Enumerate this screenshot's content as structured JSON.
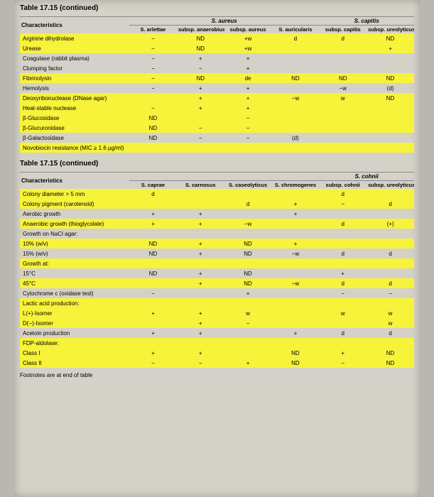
{
  "table_title_1": "Table 17.15   (continued)",
  "table_title_2": "Table 17.15   (continued)",
  "footer": "Footnotes are at end of table",
  "section1": {
    "char_header": "Characteristics",
    "group_headers": [
      "",
      "S. aureus",
      "",
      "S. capitis"
    ],
    "sub_headers": [
      "S. arlettae",
      "subsp. anaerobius",
      "subsp. aureus",
      "S. auricularis",
      "subsp. capitis",
      "subsp. ureolyticus"
    ],
    "rows": [
      {
        "c": "Arginine dihydrolase",
        "v": [
          "−",
          "ND",
          "+w",
          "d",
          "d",
          "ND"
        ],
        "hl": true
      },
      {
        "c": "Urease",
        "v": [
          "−",
          "ND",
          "+w",
          "",
          "",
          "+"
        ],
        "hl": true
      },
      {
        "c": "Coagulase (rabbit plasma)",
        "v": [
          "−",
          "+",
          "+",
          "",
          "",
          ""
        ],
        "hl": false
      },
      {
        "c": "Clumping factor",
        "v": [
          "−",
          "−",
          "+",
          "",
          "",
          ""
        ],
        "hl": false
      },
      {
        "c": "Fibrinolysin",
        "v": [
          "−",
          "ND",
          "de",
          "ND",
          "ND",
          "ND"
        ],
        "hl": true
      },
      {
        "c": "Hemolysis",
        "v": [
          "−",
          "+",
          "+",
          "",
          "−w",
          "(d)"
        ],
        "hl": false
      },
      {
        "c": "Deoxyribonuclease (DNase agar)",
        "v": [
          "",
          "+",
          "+",
          "−w",
          "w",
          "ND"
        ],
        "hl": true
      },
      {
        "c": "Heat-stable nuclease",
        "v": [
          "−",
          "+",
          "+",
          "",
          "",
          ""
        ],
        "hl": true
      },
      {
        "c": "β-Glucosidase",
        "v": [
          "ND",
          "",
          "−",
          "",
          "",
          ""
        ],
        "hl": true
      },
      {
        "c": "β-Glucuronidase",
        "v": [
          "ND",
          "−",
          "−",
          "",
          "",
          ""
        ],
        "hl": true
      },
      {
        "c": "β-Galactosidase",
        "v": [
          "ND",
          "−",
          "−",
          "(d)",
          "",
          ""
        ],
        "hl": false
      },
      {
        "c": "Novobiocin resistance (MIC ≥ 1.6 µg/ml)",
        "v": [
          "",
          "",
          "",
          "",
          "",
          ""
        ],
        "hl": true
      }
    ]
  },
  "section2": {
    "char_header": "Characteristics",
    "group_trailing": "S. cohnii",
    "sub_headers": [
      "S. caprae",
      "S. carnosus",
      "S. caseolyticus",
      "S. chromogenes",
      "subsp. cohnii",
      "subsp. ureolyticus"
    ],
    "rows": [
      {
        "c": "Colony diameter > 5 mm",
        "v": [
          "d",
          "",
          "",
          "",
          "d",
          ""
        ],
        "hl": true
      },
      {
        "c": "Colony pigment (carotenoid)",
        "v": [
          "",
          "",
          "d",
          "+",
          "−",
          "d"
        ],
        "hl": true
      },
      {
        "c": "Aerobic growth",
        "v": [
          "+",
          "+",
          "",
          "+",
          "",
          ""
        ],
        "hl": false
      },
      {
        "c": "Anaerobic growth (thioglycolate)",
        "v": [
          "+",
          "+",
          "−w",
          "",
          "d",
          "(+)"
        ],
        "hl": true
      },
      {
        "c": "Growth on NaCl agar:",
        "v": [
          "",
          "",
          "",
          "",
          "",
          ""
        ],
        "hl": false
      },
      {
        "c": "  10% (w/v)",
        "v": [
          "ND",
          "+",
          "ND",
          "+",
          "",
          ""
        ],
        "hl": true
      },
      {
        "c": "  15% (w/v)",
        "v": [
          "ND",
          "+",
          "ND",
          "−w",
          "d",
          "d"
        ],
        "hl": false
      },
      {
        "c": "Growth at:",
        "v": [
          "",
          "",
          "",
          "",
          "",
          ""
        ],
        "hl": true
      },
      {
        "c": "  15°C",
        "v": [
          "ND",
          "+",
          "ND",
          "",
          "+",
          ""
        ],
        "hl": false
      },
      {
        "c": "  45°C",
        "v": [
          "",
          "+",
          "ND",
          "−w",
          "d",
          "d"
        ],
        "hl": true
      },
      {
        "c": "Cytochrome c (oxidase test)",
        "v": [
          "−",
          "",
          "+",
          "",
          "−",
          "−"
        ],
        "hl": false
      },
      {
        "c": "Lactic acid production:",
        "v": [
          "",
          "",
          "",
          "",
          "",
          ""
        ],
        "hl": true
      },
      {
        "c": "  L(+)-Isomer",
        "v": [
          "+",
          "+",
          "w",
          "",
          "w",
          "w"
        ],
        "hl": true
      },
      {
        "c": "  D(−)-Isomer",
        "v": [
          "",
          "+",
          "−",
          "",
          "",
          "w"
        ],
        "hl": true
      },
      {
        "c": "Acetoin production",
        "v": [
          "+",
          "+",
          "",
          "+",
          "d",
          "d"
        ],
        "hl": false
      },
      {
        "c": "FDP-aldolase:",
        "v": [
          "",
          "",
          "",
          "",
          "",
          ""
        ],
        "hl": true
      },
      {
        "c": "  Class I",
        "v": [
          "+",
          "+",
          "",
          "ND",
          "+",
          "ND"
        ],
        "hl": true
      },
      {
        "c": "  Class II",
        "v": [
          "−",
          "−",
          "+",
          "ND",
          "−",
          "ND"
        ],
        "hl": true
      }
    ]
  },
  "colors": {
    "page_bg": "#d4d2c8",
    "highlight": "#f7f23a",
    "text": "#222222"
  }
}
